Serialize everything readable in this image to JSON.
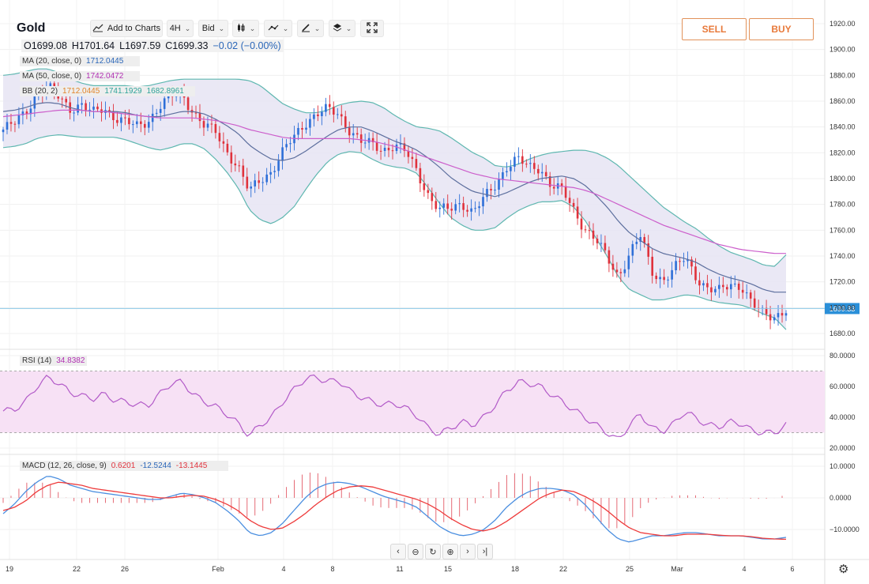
{
  "header": {
    "title": "Gold",
    "add_to_charts": "Add to Charts",
    "interval": "4H",
    "price_type": "Bid",
    "icons": [
      "candles-icon",
      "indicators-icon",
      "drawing-pen-icon",
      "layers-icon",
      "fullscreen-icon"
    ]
  },
  "ohlc": {
    "open": "O1699.08",
    "high": "H1701.64",
    "low": "L1697.59",
    "close": "C1699.33",
    "change": "−0.02 (−0.00%)"
  },
  "indicators": {
    "ma20": {
      "label": "MA (20, close, 0)",
      "value": "1712.0445"
    },
    "ma50": {
      "label": "MA (50, close, 0)",
      "value": "1742.0472"
    },
    "bb": {
      "label": "BB (20, 2)",
      "mid": "1712.0445",
      "upper": "1741.1929",
      "lower": "1682.8961"
    },
    "rsi": {
      "label": "RSI (14)",
      "value": "34.8382"
    },
    "macd": {
      "label": "MACD (12, 26, close, 9)",
      "hist": "0.6201",
      "macd": "-12.5244",
      "signal": "-13.1445"
    }
  },
  "trade": {
    "sell": "SELL",
    "buy": "BUY"
  },
  "nav_icons": [
    "scroll-left-icon",
    "zoom-out-icon",
    "reset-icon",
    "zoom-in-icon",
    "scroll-right-icon",
    "scroll-to-end-icon"
  ],
  "colors": {
    "up": "#2e6fd8",
    "down": "#e0323c",
    "bb_band": "#5fb7b0",
    "bb_fill": "#e6e4f3",
    "ma20": "#5d6f9e",
    "ma50": "#cc5ecb",
    "rsi": "#b25ac8",
    "macd_line": "#4b8fe0",
    "signal_line": "#ee3b3b",
    "last_price_line": "#8cc9e8"
  },
  "chart_data": {
    "type": "candlestick",
    "symbol": "Gold",
    "timeframe": "4H",
    "last_price": "1699.33",
    "price_axis": {
      "ticks": [
        "1920.00",
        "1900.00",
        "1880.00",
        "1860.00",
        "1840.00",
        "1820.00",
        "1800.00",
        "1780.00",
        "1760.00",
        "1740.00",
        "1720.00",
        "1700.00",
        "1680.00"
      ],
      "range": [
        1670,
        1925
      ]
    },
    "rsi_axis": {
      "ticks": [
        "80.0000",
        "60.0000",
        "40.0000",
        "20.0000"
      ],
      "range": [
        13,
        85
      ],
      "overbought": 70,
      "oversold": 30
    },
    "macd_axis": {
      "ticks": [
        "10.0000",
        "0.0000",
        "−10.0000"
      ],
      "range": [
        -17,
        12
      ]
    },
    "x_labels": [
      "19",
      "22",
      "26",
      "Feb",
      "4",
      "8",
      "11",
      "15",
      "18",
      "22",
      "25",
      "Mar",
      "4",
      "6"
    ],
    "close_path": [
      1838,
      1842,
      1852,
      1866,
      1870,
      1863,
      1855,
      1857,
      1850,
      1855,
      1848,
      1843,
      1840,
      1846,
      1856,
      1863,
      1866,
      1852,
      1840,
      1836,
      1822,
      1809,
      1789,
      1800,
      1806,
      1820,
      1832,
      1844,
      1850,
      1853,
      1850,
      1838,
      1828,
      1826,
      1823,
      1826,
      1820,
      1806,
      1788,
      1775,
      1776,
      1782,
      1774,
      1784,
      1795,
      1810,
      1815,
      1808,
      1809,
      1795,
      1790,
      1776,
      1762,
      1752,
      1738,
      1725,
      1742,
      1755,
      1728,
      1722,
      1730,
      1738,
      1724,
      1715,
      1712,
      1718,
      1718,
      1702,
      1694,
      1694,
      1699
    ],
    "ma20_path": [
      1852,
      1853,
      1855,
      1858,
      1859,
      1858,
      1855,
      1853,
      1852,
      1852,
      1852,
      1851,
      1849,
      1848,
      1848,
      1850,
      1852,
      1852,
      1850,
      1846,
      1841,
      1835,
      1826,
      1820,
      1815,
      1814,
      1816,
      1821,
      1827,
      1833,
      1838,
      1840,
      1840,
      1837,
      1833,
      1829,
      1826,
      1822,
      1816,
      1809,
      1801,
      1795,
      1790,
      1788,
      1786,
      1789,
      1793,
      1797,
      1800,
      1801,
      1802,
      1800,
      1795,
      1787,
      1778,
      1767,
      1758,
      1752,
      1746,
      1742,
      1740,
      1738,
      1735,
      1730,
      1726,
      1723,
      1721,
      1718,
      1714,
      1712,
      1712
    ],
    "ma50_path": [
      1848,
      1849,
      1850,
      1851,
      1852,
      1853,
      1853,
      1853,
      1852,
      1852,
      1851,
      1850,
      1849,
      1848,
      1847,
      1847,
      1847,
      1847,
      1846,
      1845,
      1843,
      1841,
      1838,
      1836,
      1834,
      1832,
      1831,
      1831,
      1831,
      1831,
      1831,
      1831,
      1830,
      1829,
      1827,
      1825,
      1822,
      1819,
      1816,
      1813,
      1810,
      1807,
      1804,
      1802,
      1800,
      1799,
      1798,
      1797,
      1796,
      1795,
      1794,
      1793,
      1791,
      1788,
      1784,
      1780,
      1776,
      1772,
      1768,
      1764,
      1761,
      1758,
      1755,
      1752,
      1749,
      1747,
      1745,
      1744,
      1743,
      1742,
      1742
    ],
    "bb_width_path": [
      28,
      28,
      28,
      27,
      26,
      24,
      22,
      21,
      20,
      20,
      20,
      21,
      22,
      24,
      26,
      26,
      25,
      25,
      27,
      31,
      36,
      42,
      50,
      52,
      50,
      44,
      38,
      30,
      24,
      20,
      19,
      19,
      20,
      22,
      22,
      20,
      18,
      18,
      23,
      28,
      31,
      31,
      30,
      28,
      24,
      20,
      18,
      18,
      18,
      19,
      19,
      22,
      27,
      33,
      38,
      43,
      44,
      42,
      40,
      36,
      32,
      28,
      26,
      24,
      22,
      20,
      19,
      19,
      19,
      20,
      29
    ],
    "rsi_path": [
      44,
      45,
      50,
      60,
      66,
      62,
      56,
      54,
      52,
      55,
      51,
      50,
      48,
      48,
      55,
      62,
      63,
      55,
      50,
      47,
      42,
      36,
      28,
      35,
      40,
      50,
      58,
      65,
      66,
      63,
      64,
      57,
      53,
      50,
      48,
      49,
      46,
      41,
      33,
      29,
      33,
      37,
      35,
      40,
      48,
      57,
      63,
      62,
      60,
      55,
      50,
      45,
      40,
      35,
      30,
      25,
      35,
      42,
      33,
      31,
      36,
      44,
      39,
      35,
      34,
      37,
      36,
      31,
      30,
      30,
      35
    ],
    "macd_path": [
      -5,
      -2,
      2,
      5,
      7,
      6,
      4,
      3,
      2,
      1.5,
      1,
      0.5,
      0,
      -0.5,
      -0.5,
      0.5,
      1.5,
      1,
      0,
      -1.5,
      -4,
      -7,
      -11,
      -12,
      -11,
      -8,
      -4,
      0,
      3,
      4.5,
      5,
      4.5,
      3.5,
      2,
      0.5,
      -0.5,
      -1.5,
      -3,
      -6,
      -9,
      -11,
      -12,
      -11.5,
      -10,
      -7,
      -3,
      0,
      2,
      3,
      3,
      2.5,
      1,
      -2,
      -6,
      -10,
      -13,
      -14,
      -13,
      -12,
      -12,
      -11.5,
      -11,
      -11,
      -11.5,
      -12,
      -12,
      -12,
      -12.5,
      -13,
      -13,
      -12.5
    ],
    "signal_path": [
      -4,
      -3,
      -1,
      2,
      4,
      5,
      4.5,
      4,
      3,
      2.5,
      2,
      1.5,
      1,
      0.5,
      0,
      0,
      0.5,
      0.8,
      0.5,
      -0.5,
      -2,
      -4,
      -7,
      -9,
      -10,
      -9.5,
      -7.5,
      -5,
      -2,
      0.5,
      2.5,
      3.5,
      3.8,
      3.5,
      2.5,
      1.5,
      0.5,
      -0.5,
      -2,
      -4,
      -6.5,
      -8.5,
      -10,
      -10.5,
      -9.5,
      -7.5,
      -5,
      -2.5,
      0,
      1.5,
      2.5,
      2,
      0.5,
      -1.5,
      -4,
      -7,
      -9.5,
      -11,
      -11.5,
      -12,
      -12,
      -11.5,
      -11.5,
      -11.5,
      -11.8,
      -12,
      -12,
      -12.3,
      -12.8,
      -13,
      -13.1
    ]
  }
}
